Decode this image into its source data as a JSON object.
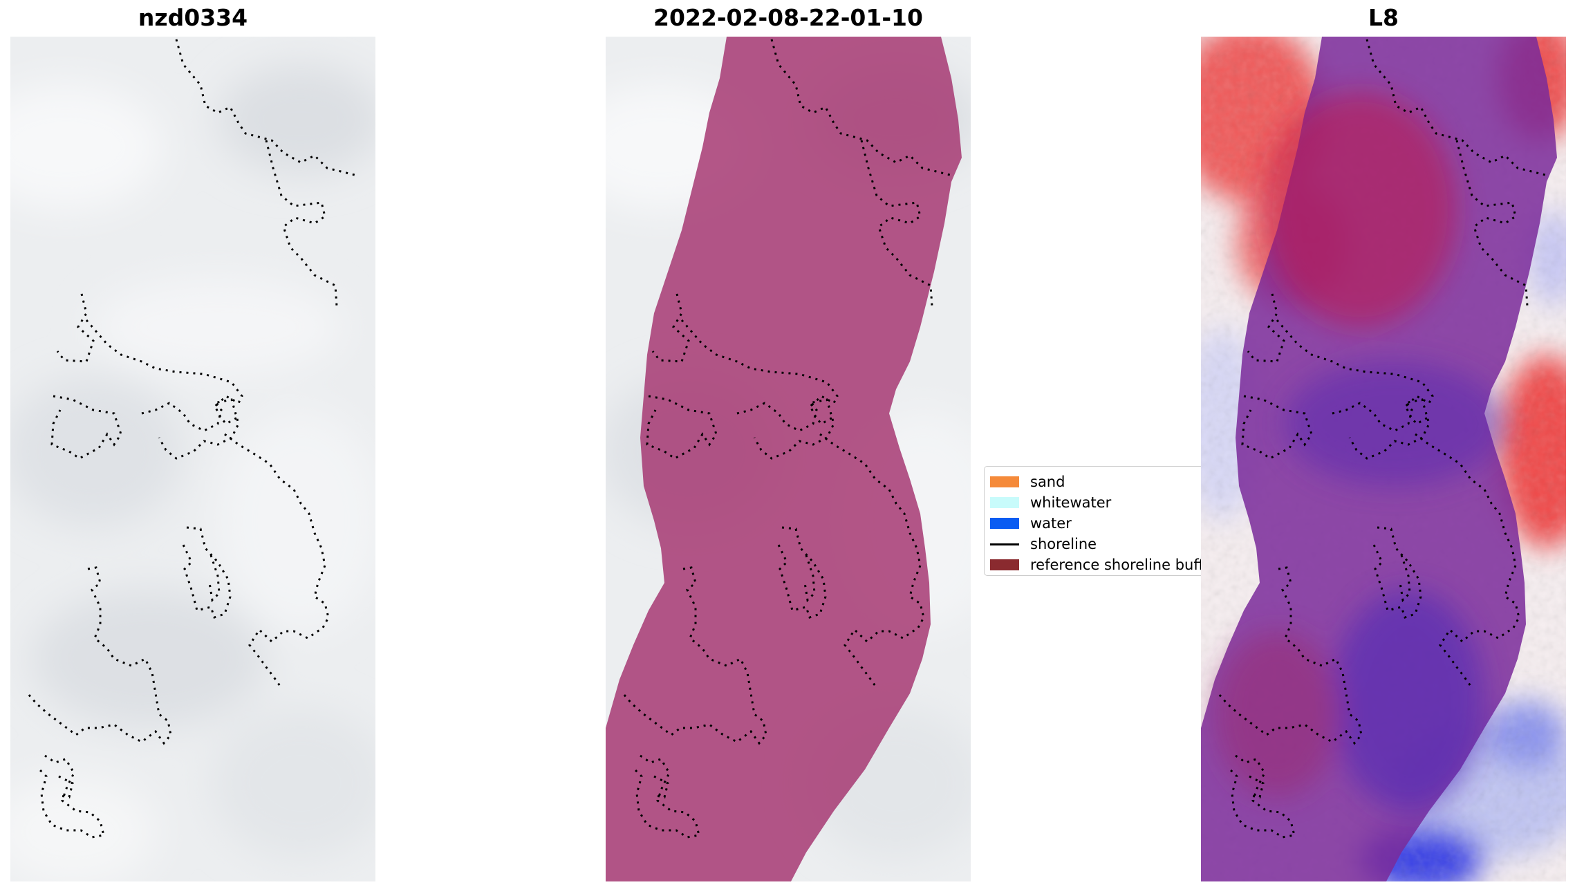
{
  "panels": [
    {
      "title": "nzd0334"
    },
    {
      "title": "2022-02-08-22-01-10"
    },
    {
      "title": "L8"
    }
  ],
  "legend": {
    "items": [
      {
        "label": "sand",
        "color": "#f58a3a",
        "kind": "patch"
      },
      {
        "label": "whitewater",
        "color": "#c8fbfb",
        "kind": "patch"
      },
      {
        "label": "water",
        "color": "#0a5cf2",
        "kind": "patch"
      },
      {
        "label": "shoreline",
        "color": "#000000",
        "kind": "line"
      },
      {
        "label": "reference shoreline buffer",
        "color": "#8a2a2f",
        "kind": "patch"
      }
    ]
  },
  "colors": {
    "cloud_background": "#e7e9ec",
    "buffer_overlay": "#a3326e",
    "index_high": "#ff2a2a",
    "index_low": "#2a34ff",
    "shoreline": "#000000"
  }
}
